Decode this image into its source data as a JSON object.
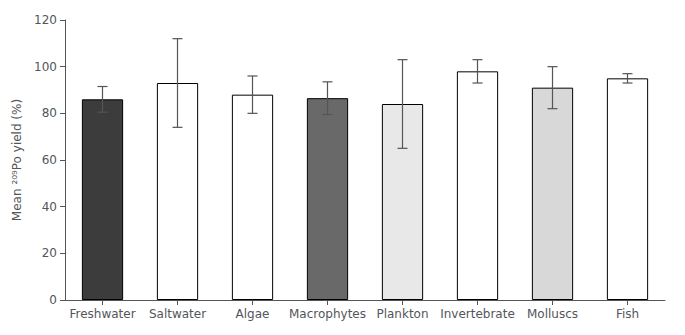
{
  "chart_data": {
    "type": "bar",
    "categories": [
      "Freshwater",
      "Saltwater",
      "Algae",
      "Macrophytes",
      "Plankton",
      "Invertebrate",
      "Molluscs",
      "Fish"
    ],
    "values": [
      86,
      93,
      88,
      86.5,
      84,
      98,
      91,
      95
    ],
    "errors": [
      5.5,
      19,
      8,
      7,
      19,
      5,
      9,
      2
    ],
    "colors": [
      "#3c3c3c",
      "#ffffff",
      "#ffffff",
      "#696969",
      "#e8e8e8",
      "#ffffff",
      "#d8d8d8",
      "#ffffff"
    ],
    "ylabel": "Mean ²⁰⁹Po yield (%)",
    "ylim": [
      0,
      120
    ],
    "yticks": [
      0,
      20,
      40,
      60,
      80,
      100,
      120
    ],
    "grid": false
  }
}
